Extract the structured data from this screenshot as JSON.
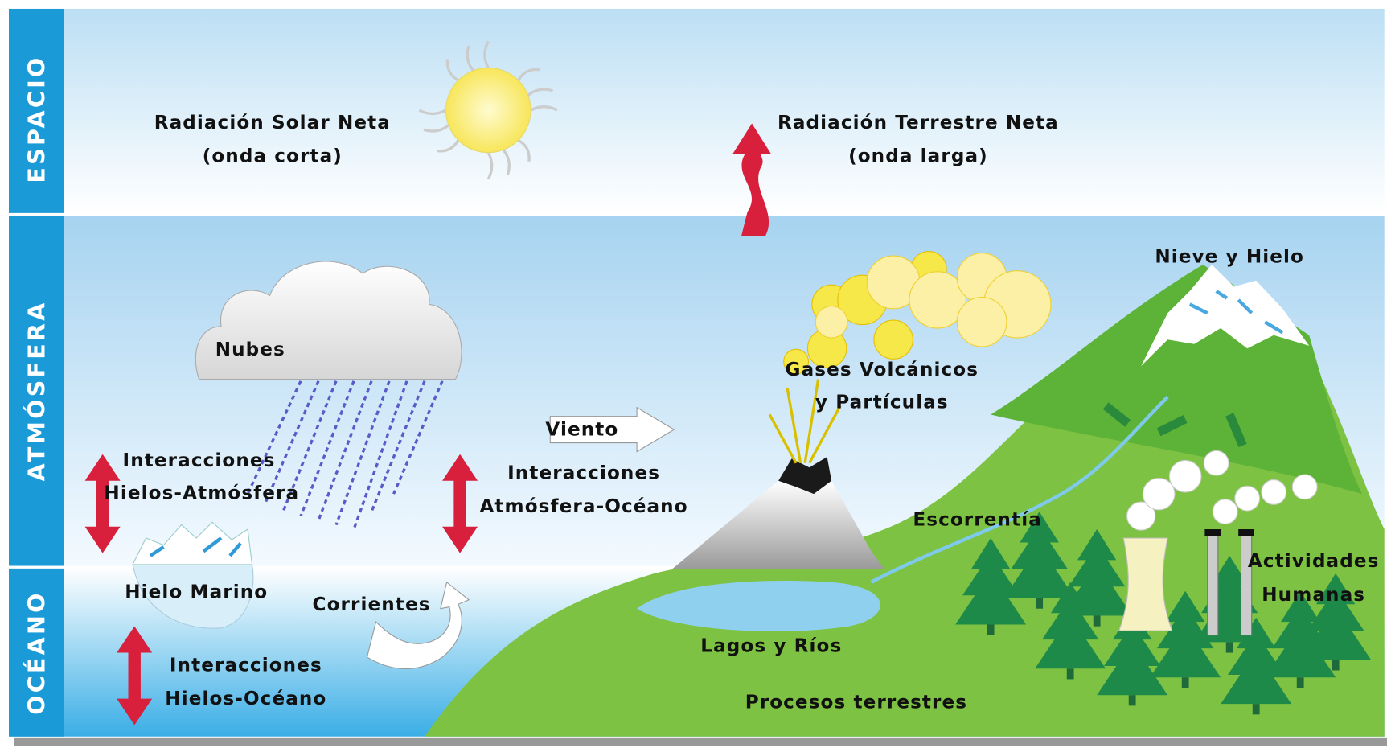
{
  "bands": [
    "ESPACIO",
    "ATMÓSFERA",
    "OCÉANO"
  ],
  "labels": [
    [
      "Radiación Solar Neta",
      "(onda corta)"
    ],
    [
      "Radiación Terrestre Neta",
      "(onda larga)"
    ],
    [
      "Nubes"
    ],
    [
      "Interacciones",
      "Hielos-Atmósfera"
    ],
    [
      "Viento"
    ],
    [
      "Interacciones",
      "Atmósfera-Océano"
    ],
    [
      "Gases Volcánicos",
      "y Partículas"
    ],
    [
      "Nieve y Hielo"
    ],
    [
      "Escorrentía"
    ],
    [
      "Actividades",
      "Humanas"
    ],
    [
      "Hielo Marino"
    ],
    [
      "Corrientes"
    ],
    [
      "Lagos y Ríos"
    ],
    [
      "Interacciones",
      "Hielos-Océano"
    ],
    [
      "Procesos terrestres"
    ]
  ]
}
